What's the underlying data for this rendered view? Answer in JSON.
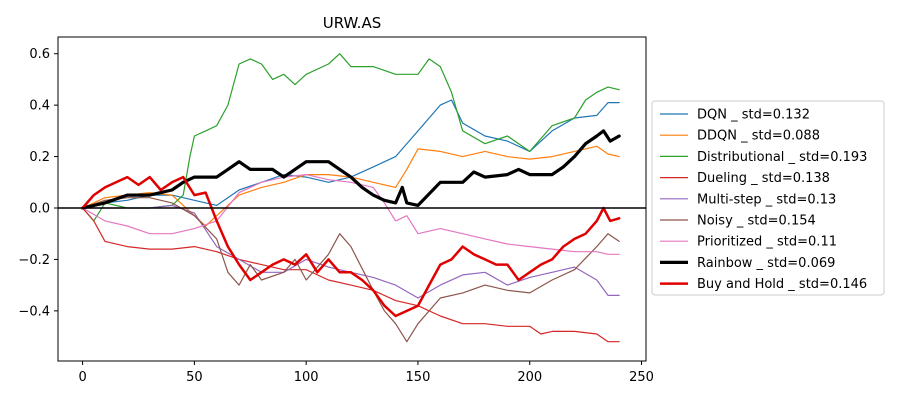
{
  "chart_data": {
    "type": "line",
    "title": "URW.AS",
    "xlabel": "",
    "ylabel": "",
    "xlim": [
      -11,
      252
    ],
    "ylim": [
      -0.595,
      0.665
    ],
    "xticks": [
      0,
      50,
      100,
      150,
      200,
      250
    ],
    "yticks": [
      -0.4,
      -0.2,
      0.0,
      0.2,
      0.4,
      0.6
    ],
    "ytick_labels": [
      "−0.4",
      "−0.2",
      "0.0",
      "0.2",
      "0.4",
      "0.6"
    ],
    "zero_line": true,
    "grid": false,
    "legend_position": "right",
    "series": [
      {
        "name": "DQN _ std=0.132",
        "color": "#1f77b4",
        "width": 1.2,
        "points": [
          [
            0,
            0.0
          ],
          [
            10,
            0.02
          ],
          [
            20,
            0.03
          ],
          [
            30,
            0.05
          ],
          [
            40,
            0.05
          ],
          [
            50,
            0.03
          ],
          [
            60,
            0.01
          ],
          [
            70,
            0.07
          ],
          [
            80,
            0.1
          ],
          [
            90,
            0.13
          ],
          [
            100,
            0.12
          ],
          [
            110,
            0.1
          ],
          [
            120,
            0.12
          ],
          [
            130,
            0.16
          ],
          [
            140,
            0.2
          ],
          [
            150,
            0.3
          ],
          [
            160,
            0.4
          ],
          [
            165,
            0.42
          ],
          [
            170,
            0.33
          ],
          [
            180,
            0.28
          ],
          [
            190,
            0.26
          ],
          [
            200,
            0.22
          ],
          [
            210,
            0.3
          ],
          [
            220,
            0.35
          ],
          [
            230,
            0.36
          ],
          [
            235,
            0.41
          ],
          [
            240,
            0.41
          ]
        ]
      },
      {
        "name": "DDQN _ std=0.088",
        "color": "#ff7f0e",
        "width": 1.2,
        "points": [
          [
            0,
            0.0
          ],
          [
            10,
            0.04
          ],
          [
            20,
            0.05
          ],
          [
            30,
            0.06
          ],
          [
            40,
            0.05
          ],
          [
            50,
            -0.03
          ],
          [
            55,
            -0.07
          ],
          [
            60,
            -0.03
          ],
          [
            70,
            0.05
          ],
          [
            80,
            0.08
          ],
          [
            90,
            0.1
          ],
          [
            100,
            0.13
          ],
          [
            110,
            0.13
          ],
          [
            120,
            0.12
          ],
          [
            130,
            0.1
          ],
          [
            140,
            0.08
          ],
          [
            145,
            0.15
          ],
          [
            150,
            0.23
          ],
          [
            160,
            0.22
          ],
          [
            170,
            0.2
          ],
          [
            180,
            0.22
          ],
          [
            190,
            0.2
          ],
          [
            200,
            0.19
          ],
          [
            210,
            0.2
          ],
          [
            220,
            0.22
          ],
          [
            230,
            0.24
          ],
          [
            235,
            0.21
          ],
          [
            240,
            0.2
          ]
        ]
      },
      {
        "name": "Distributional _ std=0.193",
        "color": "#2ca02c",
        "width": 1.2,
        "points": [
          [
            0,
            0.0
          ],
          [
            5,
            -0.05
          ],
          [
            10,
            0.02
          ],
          [
            20,
            0.0
          ],
          [
            30,
            0.0
          ],
          [
            40,
            0.01
          ],
          [
            45,
            0.05
          ],
          [
            48,
            0.2
          ],
          [
            50,
            0.28
          ],
          [
            55,
            0.3
          ],
          [
            60,
            0.32
          ],
          [
            65,
            0.4
          ],
          [
            70,
            0.56
          ],
          [
            75,
            0.58
          ],
          [
            80,
            0.56
          ],
          [
            85,
            0.5
          ],
          [
            90,
            0.52
          ],
          [
            95,
            0.48
          ],
          [
            100,
            0.52
          ],
          [
            110,
            0.56
          ],
          [
            115,
            0.6
          ],
          [
            120,
            0.55
          ],
          [
            130,
            0.55
          ],
          [
            140,
            0.52
          ],
          [
            150,
            0.52
          ],
          [
            155,
            0.58
          ],
          [
            160,
            0.55
          ],
          [
            165,
            0.45
          ],
          [
            170,
            0.3
          ],
          [
            180,
            0.25
          ],
          [
            190,
            0.28
          ],
          [
            200,
            0.22
          ],
          [
            205,
            0.27
          ],
          [
            210,
            0.32
          ],
          [
            220,
            0.35
          ],
          [
            225,
            0.42
          ],
          [
            230,
            0.45
          ],
          [
            235,
            0.47
          ],
          [
            240,
            0.46
          ]
        ]
      },
      {
        "name": "Dueling _ std=0.138",
        "color": "#d62728",
        "width": 1.2,
        "points": [
          [
            0,
            0.0
          ],
          [
            5,
            -0.05
          ],
          [
            10,
            -0.13
          ],
          [
            20,
            -0.15
          ],
          [
            30,
            -0.16
          ],
          [
            40,
            -0.16
          ],
          [
            50,
            -0.15
          ],
          [
            60,
            -0.17
          ],
          [
            70,
            -0.2
          ],
          [
            80,
            -0.22
          ],
          [
            90,
            -0.24
          ],
          [
            100,
            -0.24
          ],
          [
            110,
            -0.28
          ],
          [
            120,
            -0.3
          ],
          [
            130,
            -0.32
          ],
          [
            140,
            -0.36
          ],
          [
            150,
            -0.38
          ],
          [
            160,
            -0.42
          ],
          [
            170,
            -0.45
          ],
          [
            180,
            -0.45
          ],
          [
            190,
            -0.46
          ],
          [
            200,
            -0.46
          ],
          [
            205,
            -0.49
          ],
          [
            210,
            -0.48
          ],
          [
            220,
            -0.48
          ],
          [
            230,
            -0.49
          ],
          [
            235,
            -0.52
          ],
          [
            240,
            -0.52
          ]
        ]
      },
      {
        "name": "Multi-step _ std=0.13",
        "color": "#9467bd",
        "width": 1.2,
        "points": [
          [
            0,
            0.0
          ],
          [
            10,
            0.0
          ],
          [
            20,
            0.0
          ],
          [
            30,
            0.0
          ],
          [
            40,
            0.01
          ],
          [
            50,
            -0.02
          ],
          [
            60,
            -0.15
          ],
          [
            70,
            -0.2
          ],
          [
            80,
            -0.25
          ],
          [
            90,
            -0.25
          ],
          [
            100,
            -0.2
          ],
          [
            110,
            -0.23
          ],
          [
            120,
            -0.25
          ],
          [
            130,
            -0.27
          ],
          [
            140,
            -0.3
          ],
          [
            150,
            -0.35
          ],
          [
            160,
            -0.3
          ],
          [
            170,
            -0.26
          ],
          [
            180,
            -0.25
          ],
          [
            190,
            -0.3
          ],
          [
            200,
            -0.27
          ],
          [
            210,
            -0.25
          ],
          [
            220,
            -0.23
          ],
          [
            230,
            -0.28
          ],
          [
            235,
            -0.34
          ],
          [
            240,
            -0.34
          ]
        ]
      },
      {
        "name": "Noisy _ std=0.154",
        "color": "#8c564b",
        "width": 1.2,
        "points": [
          [
            0,
            0.0
          ],
          [
            10,
            0.03
          ],
          [
            20,
            0.04
          ],
          [
            30,
            0.04
          ],
          [
            40,
            0.02
          ],
          [
            50,
            -0.03
          ],
          [
            60,
            -0.12
          ],
          [
            65,
            -0.25
          ],
          [
            70,
            -0.3
          ],
          [
            75,
            -0.22
          ],
          [
            80,
            -0.28
          ],
          [
            90,
            -0.25
          ],
          [
            95,
            -0.2
          ],
          [
            100,
            -0.28
          ],
          [
            110,
            -0.18
          ],
          [
            115,
            -0.1
          ],
          [
            120,
            -0.15
          ],
          [
            130,
            -0.32
          ],
          [
            135,
            -0.4
          ],
          [
            140,
            -0.45
          ],
          [
            145,
            -0.52
          ],
          [
            150,
            -0.45
          ],
          [
            160,
            -0.35
          ],
          [
            170,
            -0.33
          ],
          [
            180,
            -0.3
          ],
          [
            190,
            -0.32
          ],
          [
            200,
            -0.33
          ],
          [
            210,
            -0.28
          ],
          [
            220,
            -0.24
          ],
          [
            230,
            -0.15
          ],
          [
            235,
            -0.1
          ],
          [
            240,
            -0.13
          ]
        ]
      },
      {
        "name": "Prioritized _ std=0.11",
        "color": "#e377c2",
        "width": 1.2,
        "points": [
          [
            0,
            0.0
          ],
          [
            10,
            -0.05
          ],
          [
            20,
            -0.07
          ],
          [
            30,
            -0.1
          ],
          [
            40,
            -0.1
          ],
          [
            50,
            -0.08
          ],
          [
            60,
            -0.05
          ],
          [
            70,
            0.06
          ],
          [
            80,
            0.1
          ],
          [
            90,
            0.12
          ],
          [
            100,
            0.13
          ],
          [
            110,
            0.11
          ],
          [
            120,
            0.1
          ],
          [
            130,
            0.08
          ],
          [
            135,
            0.02
          ],
          [
            140,
            -0.05
          ],
          [
            145,
            -0.03
          ],
          [
            150,
            -0.1
          ],
          [
            160,
            -0.08
          ],
          [
            170,
            -0.1
          ],
          [
            180,
            -0.12
          ],
          [
            190,
            -0.14
          ],
          [
            200,
            -0.15
          ],
          [
            210,
            -0.16
          ],
          [
            220,
            -0.17
          ],
          [
            230,
            -0.17
          ],
          [
            235,
            -0.18
          ],
          [
            240,
            -0.18
          ]
        ]
      },
      {
        "name": "Rainbow _ std=0.069",
        "color": "#000000",
        "width": 3.2,
        "points": [
          [
            0,
            0.0
          ],
          [
            10,
            0.02
          ],
          [
            20,
            0.05
          ],
          [
            30,
            0.05
          ],
          [
            40,
            0.07
          ],
          [
            45,
            0.1
          ],
          [
            50,
            0.12
          ],
          [
            60,
            0.12
          ],
          [
            65,
            0.15
          ],
          [
            70,
            0.18
          ],
          [
            75,
            0.15
          ],
          [
            80,
            0.15
          ],
          [
            85,
            0.15
          ],
          [
            90,
            0.12
          ],
          [
            95,
            0.15
          ],
          [
            100,
            0.18
          ],
          [
            110,
            0.18
          ],
          [
            115,
            0.15
          ],
          [
            120,
            0.12
          ],
          [
            125,
            0.08
          ],
          [
            130,
            0.05
          ],
          [
            135,
            0.03
          ],
          [
            140,
            0.02
          ],
          [
            143,
            0.08
          ],
          [
            145,
            0.02
          ],
          [
            150,
            0.01
          ],
          [
            160,
            0.1
          ],
          [
            170,
            0.1
          ],
          [
            175,
            0.14
          ],
          [
            180,
            0.12
          ],
          [
            190,
            0.13
          ],
          [
            195,
            0.15
          ],
          [
            200,
            0.13
          ],
          [
            210,
            0.13
          ],
          [
            215,
            0.16
          ],
          [
            220,
            0.2
          ],
          [
            225,
            0.25
          ],
          [
            230,
            0.28
          ],
          [
            233,
            0.3
          ],
          [
            236,
            0.26
          ],
          [
            240,
            0.28
          ]
        ]
      },
      {
        "name": "Buy and Hold _ std=0.146",
        "color": "#e00000",
        "width": 2.5,
        "points": [
          [
            0,
            0.0
          ],
          [
            5,
            0.05
          ],
          [
            10,
            0.08
          ],
          [
            15,
            0.1
          ],
          [
            20,
            0.12
          ],
          [
            25,
            0.09
          ],
          [
            30,
            0.12
          ],
          [
            35,
            0.07
          ],
          [
            40,
            0.1
          ],
          [
            45,
            0.12
          ],
          [
            50,
            0.05
          ],
          [
            55,
            0.06
          ],
          [
            60,
            -0.05
          ],
          [
            65,
            -0.15
          ],
          [
            70,
            -0.22
          ],
          [
            75,
            -0.28
          ],
          [
            80,
            -0.25
          ],
          [
            85,
            -0.22
          ],
          [
            90,
            -0.2
          ],
          [
            95,
            -0.22
          ],
          [
            100,
            -0.18
          ],
          [
            105,
            -0.25
          ],
          [
            110,
            -0.2
          ],
          [
            115,
            -0.25
          ],
          [
            120,
            -0.25
          ],
          [
            125,
            -0.28
          ],
          [
            130,
            -0.32
          ],
          [
            135,
            -0.38
          ],
          [
            140,
            -0.42
          ],
          [
            145,
            -0.4
          ],
          [
            150,
            -0.38
          ],
          [
            155,
            -0.3
          ],
          [
            160,
            -0.22
          ],
          [
            165,
            -0.2
          ],
          [
            170,
            -0.15
          ],
          [
            175,
            -0.18
          ],
          [
            180,
            -0.2
          ],
          [
            185,
            -0.22
          ],
          [
            190,
            -0.22
          ],
          [
            195,
            -0.28
          ],
          [
            200,
            -0.25
          ],
          [
            205,
            -0.22
          ],
          [
            210,
            -0.2
          ],
          [
            215,
            -0.15
          ],
          [
            220,
            -0.12
          ],
          [
            225,
            -0.1
          ],
          [
            230,
            -0.05
          ],
          [
            233,
            0.0
          ],
          [
            236,
            -0.05
          ],
          [
            240,
            -0.04
          ]
        ]
      }
    ]
  }
}
